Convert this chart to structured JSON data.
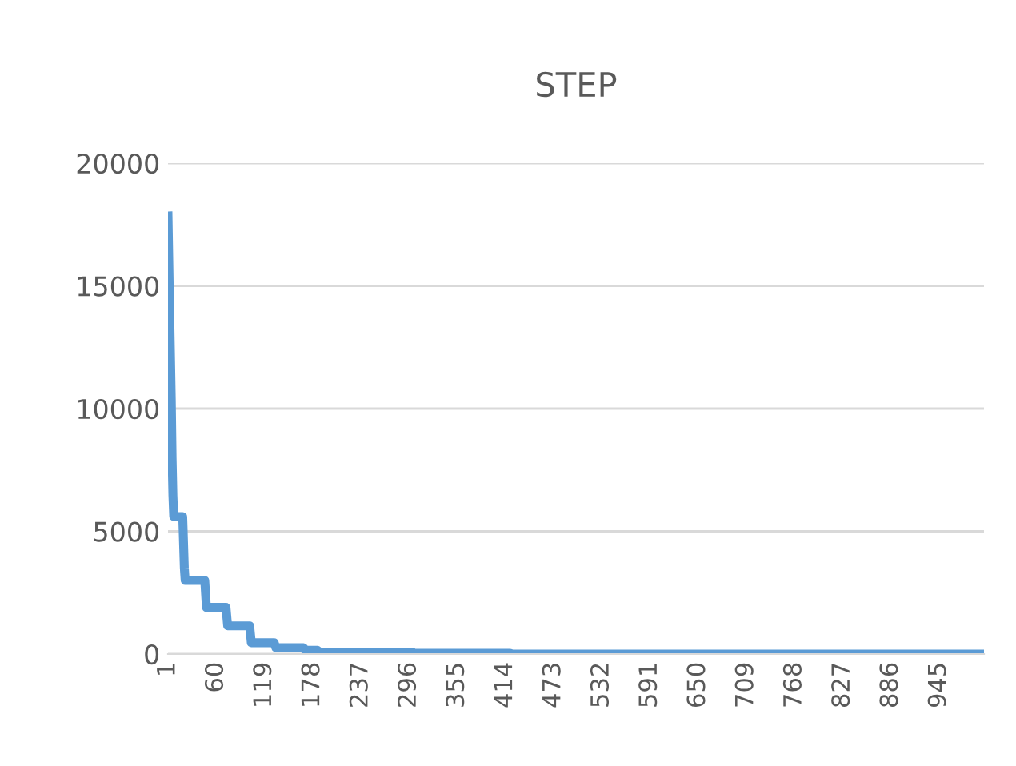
{
  "chart_data": {
    "type": "line",
    "title": "STEP",
    "x": [
      1,
      3,
      5,
      6,
      7,
      8,
      19,
      21,
      22,
      46,
      48,
      72,
      74,
      101,
      103,
      131,
      133,
      167,
      169,
      184,
      186,
      300,
      302,
      420,
      422,
      1000
    ],
    "series": [
      {
        "color": "#5b9bd5",
        "values": [
          17850,
          14000,
          10400,
          8000,
          6450,
          5600,
          5600,
          3500,
          3000,
          3000,
          1900,
          1900,
          1150,
          1150,
          460,
          460,
          260,
          260,
          150,
          150,
          80,
          80,
          30,
          30,
          0,
          0
        ]
      }
    ],
    "xlim": [
      1,
      1000
    ],
    "xticks": [
      1,
      60,
      119,
      178,
      237,
      296,
      355,
      414,
      473,
      532,
      591,
      650,
      709,
      768,
      827,
      886,
      945
    ],
    "ylim": [
      0,
      20000
    ],
    "yticks": [
      0,
      5000,
      10000,
      15000,
      20000
    ],
    "grid": "y",
    "legend": false
  }
}
